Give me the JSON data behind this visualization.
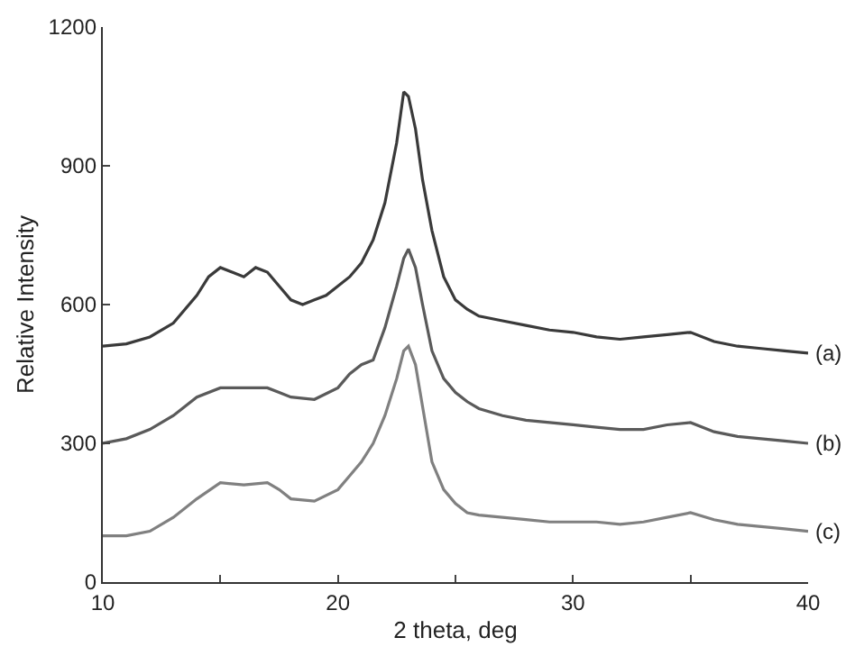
{
  "chart_data": {
    "type": "line",
    "xlabel": "2 theta, deg",
    "ylabel": "Relative Intensity",
    "xlim": [
      10,
      40
    ],
    "xticks": [
      10,
      {
        "value": 15,
        "label": null
      },
      20,
      {
        "value": 25,
        "label": null
      },
      30,
      {
        "value": 35,
        "label": null
      },
      40
    ],
    "ylim": [
      0,
      1200
    ],
    "yticks": [
      0,
      300,
      600,
      900,
      1200
    ],
    "legend": false,
    "marker": "none",
    "line_style": "solid",
    "series": [
      {
        "name": "(a)",
        "color": "#3a3a3a",
        "x": [
          10,
          11,
          12,
          13,
          14,
          14.5,
          15,
          15.5,
          16,
          16.5,
          17,
          17.5,
          18,
          18.5,
          19,
          19.5,
          20,
          20.5,
          21,
          21.5,
          22,
          22.5,
          22.8,
          23,
          23.3,
          23.6,
          24,
          24.5,
          25,
          25.5,
          26,
          27,
          28,
          29,
          30,
          31,
          32,
          33,
          34,
          35,
          36,
          37,
          38,
          39,
          40
        ],
        "values": [
          510,
          515,
          530,
          560,
          620,
          660,
          680,
          670,
          660,
          680,
          670,
          640,
          610,
          600,
          610,
          620,
          640,
          660,
          690,
          740,
          820,
          950,
          1060,
          1050,
          980,
          870,
          760,
          660,
          610,
          590,
          575,
          565,
          555,
          545,
          540,
          530,
          525,
          530,
          535,
          540,
          520,
          510,
          505,
          500,
          495
        ]
      },
      {
        "name": "(b)",
        "color": "#5a5a5a",
        "x": [
          10,
          11,
          12,
          13,
          14,
          15,
          16,
          17,
          17.5,
          18,
          19,
          20,
          20.5,
          21,
          21.5,
          22,
          22.5,
          22.8,
          23,
          23.3,
          23.6,
          24,
          24.5,
          25,
          25.5,
          26,
          27,
          28,
          29,
          30,
          31,
          32,
          33,
          34,
          35,
          36,
          37,
          38,
          39,
          40
        ],
        "values": [
          300,
          310,
          330,
          360,
          400,
          420,
          420,
          420,
          410,
          400,
          395,
          420,
          450,
          470,
          480,
          550,
          640,
          700,
          720,
          680,
          600,
          500,
          440,
          410,
          390,
          375,
          360,
          350,
          345,
          340,
          335,
          330,
          330,
          340,
          345,
          325,
          315,
          310,
          305,
          300
        ]
      },
      {
        "name": "(c)",
        "color": "#808080",
        "x": [
          10,
          11,
          12,
          13,
          14,
          15,
          16,
          17,
          17.5,
          18,
          19,
          20,
          20.5,
          21,
          21.5,
          22,
          22.5,
          22.8,
          23,
          23.3,
          23.6,
          24,
          24.5,
          25,
          25.5,
          26,
          27,
          28,
          29,
          30,
          31,
          32,
          33,
          34,
          35,
          36,
          37,
          38,
          39,
          40
        ],
        "values": [
          100,
          100,
          110,
          140,
          180,
          215,
          210,
          215,
          200,
          180,
          175,
          200,
          230,
          260,
          300,
          360,
          440,
          500,
          510,
          470,
          380,
          260,
          200,
          170,
          150,
          145,
          140,
          135,
          130,
          130,
          130,
          125,
          130,
          140,
          150,
          135,
          125,
          120,
          115,
          110
        ]
      }
    ]
  }
}
